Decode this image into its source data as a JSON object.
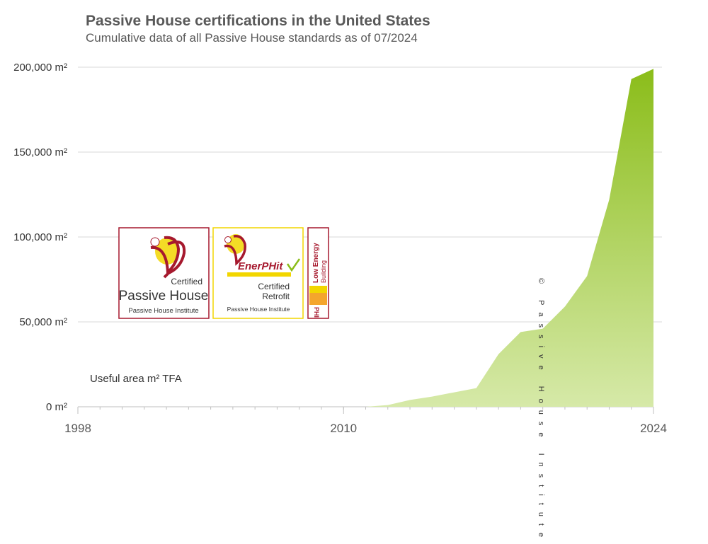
{
  "header": {
    "title": "Passive House certifications in the United States",
    "subtitle": "Cumulative data of all Passive House standards as of 07/2024"
  },
  "annotation": "Useful area m² TFA",
  "copyright": "© Passive House Institute",
  "logos": {
    "certified_passive_house": {
      "line1": "Certified",
      "line2": "Passive House",
      "line3": "Passive House Institute"
    },
    "enerphit": {
      "brand": "EnerPHit",
      "line1": "Certified",
      "line2": "Retrofit",
      "line3": "Passive House Institute"
    },
    "low_energy": {
      "line1": "Low Energy",
      "line2": "Building",
      "line3": "PHI"
    }
  },
  "colors": {
    "area_top": "#8bbd1a",
    "area_bottom": "#d6e9a8",
    "grid": "#d9d9d9",
    "phi_red": "#a6192e",
    "phi_yellow": "#f2d600"
  },
  "chart_data": {
    "type": "area",
    "title": "Passive House certifications in the United States",
    "subtitle": "Cumulative data of all Passive House standards as of 07/2024",
    "ylabel": "Useful area m² TFA",
    "ylim": [
      0,
      200000
    ],
    "xlim": [
      1998,
      2024
    ],
    "y_ticks": [
      0,
      50000,
      100000,
      150000,
      200000
    ],
    "y_tick_labels": [
      "0 m²",
      "50,000 m²",
      "100,000 m²",
      "150,000 m²",
      "200,000 m²"
    ],
    "x_tick_labels": [
      "1998",
      "2010",
      "2024"
    ],
    "x_tick_values": [
      1998,
      2010,
      2024
    ],
    "grid": true,
    "series": [
      {
        "x": [
          1998,
          2010,
          2011,
          2012,
          2013,
          2014,
          2015,
          2016,
          2017,
          2018,
          2019,
          2020,
          2021,
          2022,
          2023,
          2024
        ],
        "y": [
          0,
          0,
          0,
          1000,
          4000,
          6000,
          8500,
          11000,
          31000,
          44000,
          46000,
          59000,
          77000,
          122000,
          193000,
          199000
        ]
      }
    ]
  }
}
